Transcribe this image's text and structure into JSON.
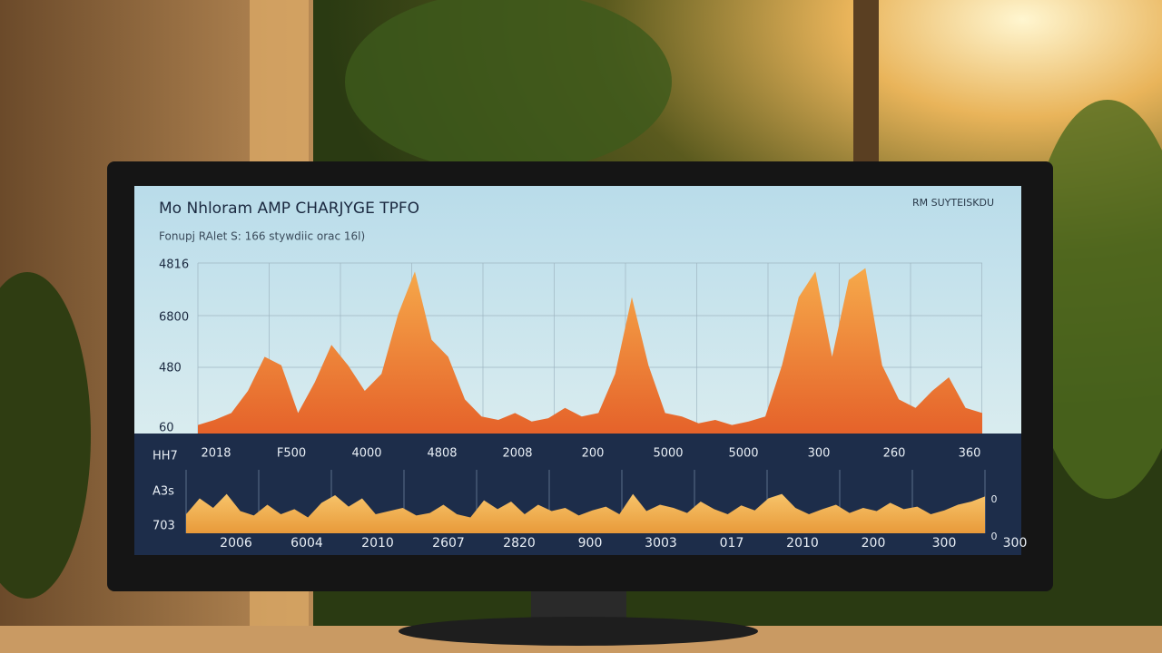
{
  "screen": {
    "title": "Mo Nhloram AMP CHARJYGE TPFO",
    "subtitle": "Fonupj RAlet S: 166 stywdiic orac 16l)",
    "badge": "RM SUYTEISKDU",
    "upper": {
      "y_labels": [
        "4816",
        "6800",
        "480",
        "60"
      ],
      "x_labels": [
        "2018",
        "F500",
        "4000",
        "4808",
        "2008",
        "200",
        "5000",
        "5000",
        "300",
        "260",
        "360"
      ],
      "values": [
        5,
        8,
        12,
        25,
        45,
        40,
        12,
        30,
        52,
        40,
        25,
        35,
        70,
        95,
        55,
        45,
        20,
        10,
        8,
        12,
        7,
        9,
        15,
        10,
        12,
        35,
        80,
        40,
        12,
        10,
        6,
        8,
        5,
        7,
        10,
        40,
        80,
        95,
        45,
        90,
        97,
        40,
        20,
        15,
        25,
        33,
        15,
        12
      ]
    },
    "lower": {
      "y_labels": [
        "HH7",
        "A3s",
        "703"
      ],
      "right_labels": [
        "0",
        "0"
      ],
      "x_labels": [
        "2006",
        "6004",
        "2010",
        "2607",
        "2820",
        "900",
        "3003",
        "017",
        "2010",
        "200",
        "300",
        "300"
      ],
      "values": [
        30,
        55,
        40,
        62,
        35,
        28,
        45,
        30,
        38,
        25,
        48,
        60,
        42,
        55,
        30,
        35,
        40,
        28,
        32,
        45,
        30,
        25,
        52,
        38,
        50,
        30,
        45,
        35,
        40,
        28,
        36,
        42,
        30,
        62,
        35,
        45,
        40,
        32,
        50,
        38,
        30,
        44,
        36,
        55,
        62,
        40,
        30,
        38,
        45,
        32,
        40,
        35,
        48,
        38,
        42,
        30,
        36,
        45,
        50,
        58
      ]
    }
  }
}
